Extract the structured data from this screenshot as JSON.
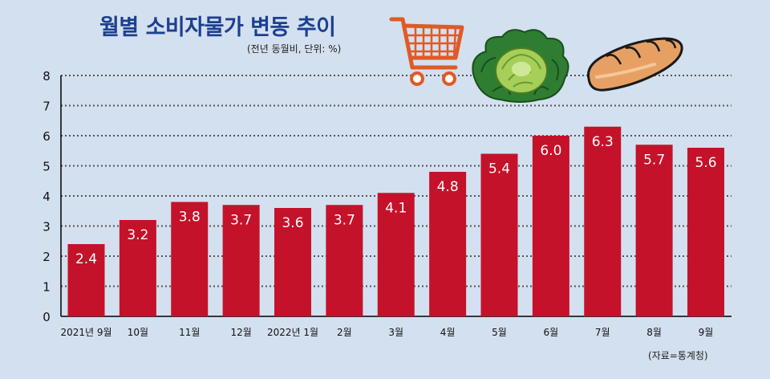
{
  "header": {
    "title": "월별 소비자물가 변동 추이",
    "subtitle": "(전년 동월비, 단위: %)"
  },
  "footer": {
    "source": "(자료=통계청)"
  },
  "illustrations": {
    "cart": "shopping-cart-icon",
    "cabbage": "cabbage-icon",
    "bread": "bread-icon"
  },
  "colors": {
    "background": "#d3e0ef",
    "bar": "#c4122a",
    "title": "#1d3f8f",
    "cart": "#e05a26"
  },
  "chart_data": {
    "type": "bar",
    "categories": [
      "2021년 9월",
      "10월",
      "11월",
      "12월",
      "2022년 1월",
      "2월",
      "3월",
      "4월",
      "5월",
      "6월",
      "7월",
      "8월",
      "9월"
    ],
    "values": [
      2.4,
      3.2,
      3.8,
      3.7,
      3.6,
      3.7,
      4.1,
      4.8,
      5.4,
      6.0,
      6.3,
      5.7,
      5.6
    ],
    "value_labels": [
      "2.4",
      "3.2",
      "3.8",
      "3.7",
      "3.6",
      "3.7",
      "4.1",
      "4.8",
      "5.4",
      "6.0",
      "6.3",
      "5.7",
      "5.6"
    ],
    "ylim": [
      0,
      8
    ],
    "yticks": [
      0,
      1,
      2,
      3,
      4,
      5,
      6,
      7,
      8
    ],
    "grid": true,
    "grid_style": "dotted",
    "legend": "none"
  }
}
